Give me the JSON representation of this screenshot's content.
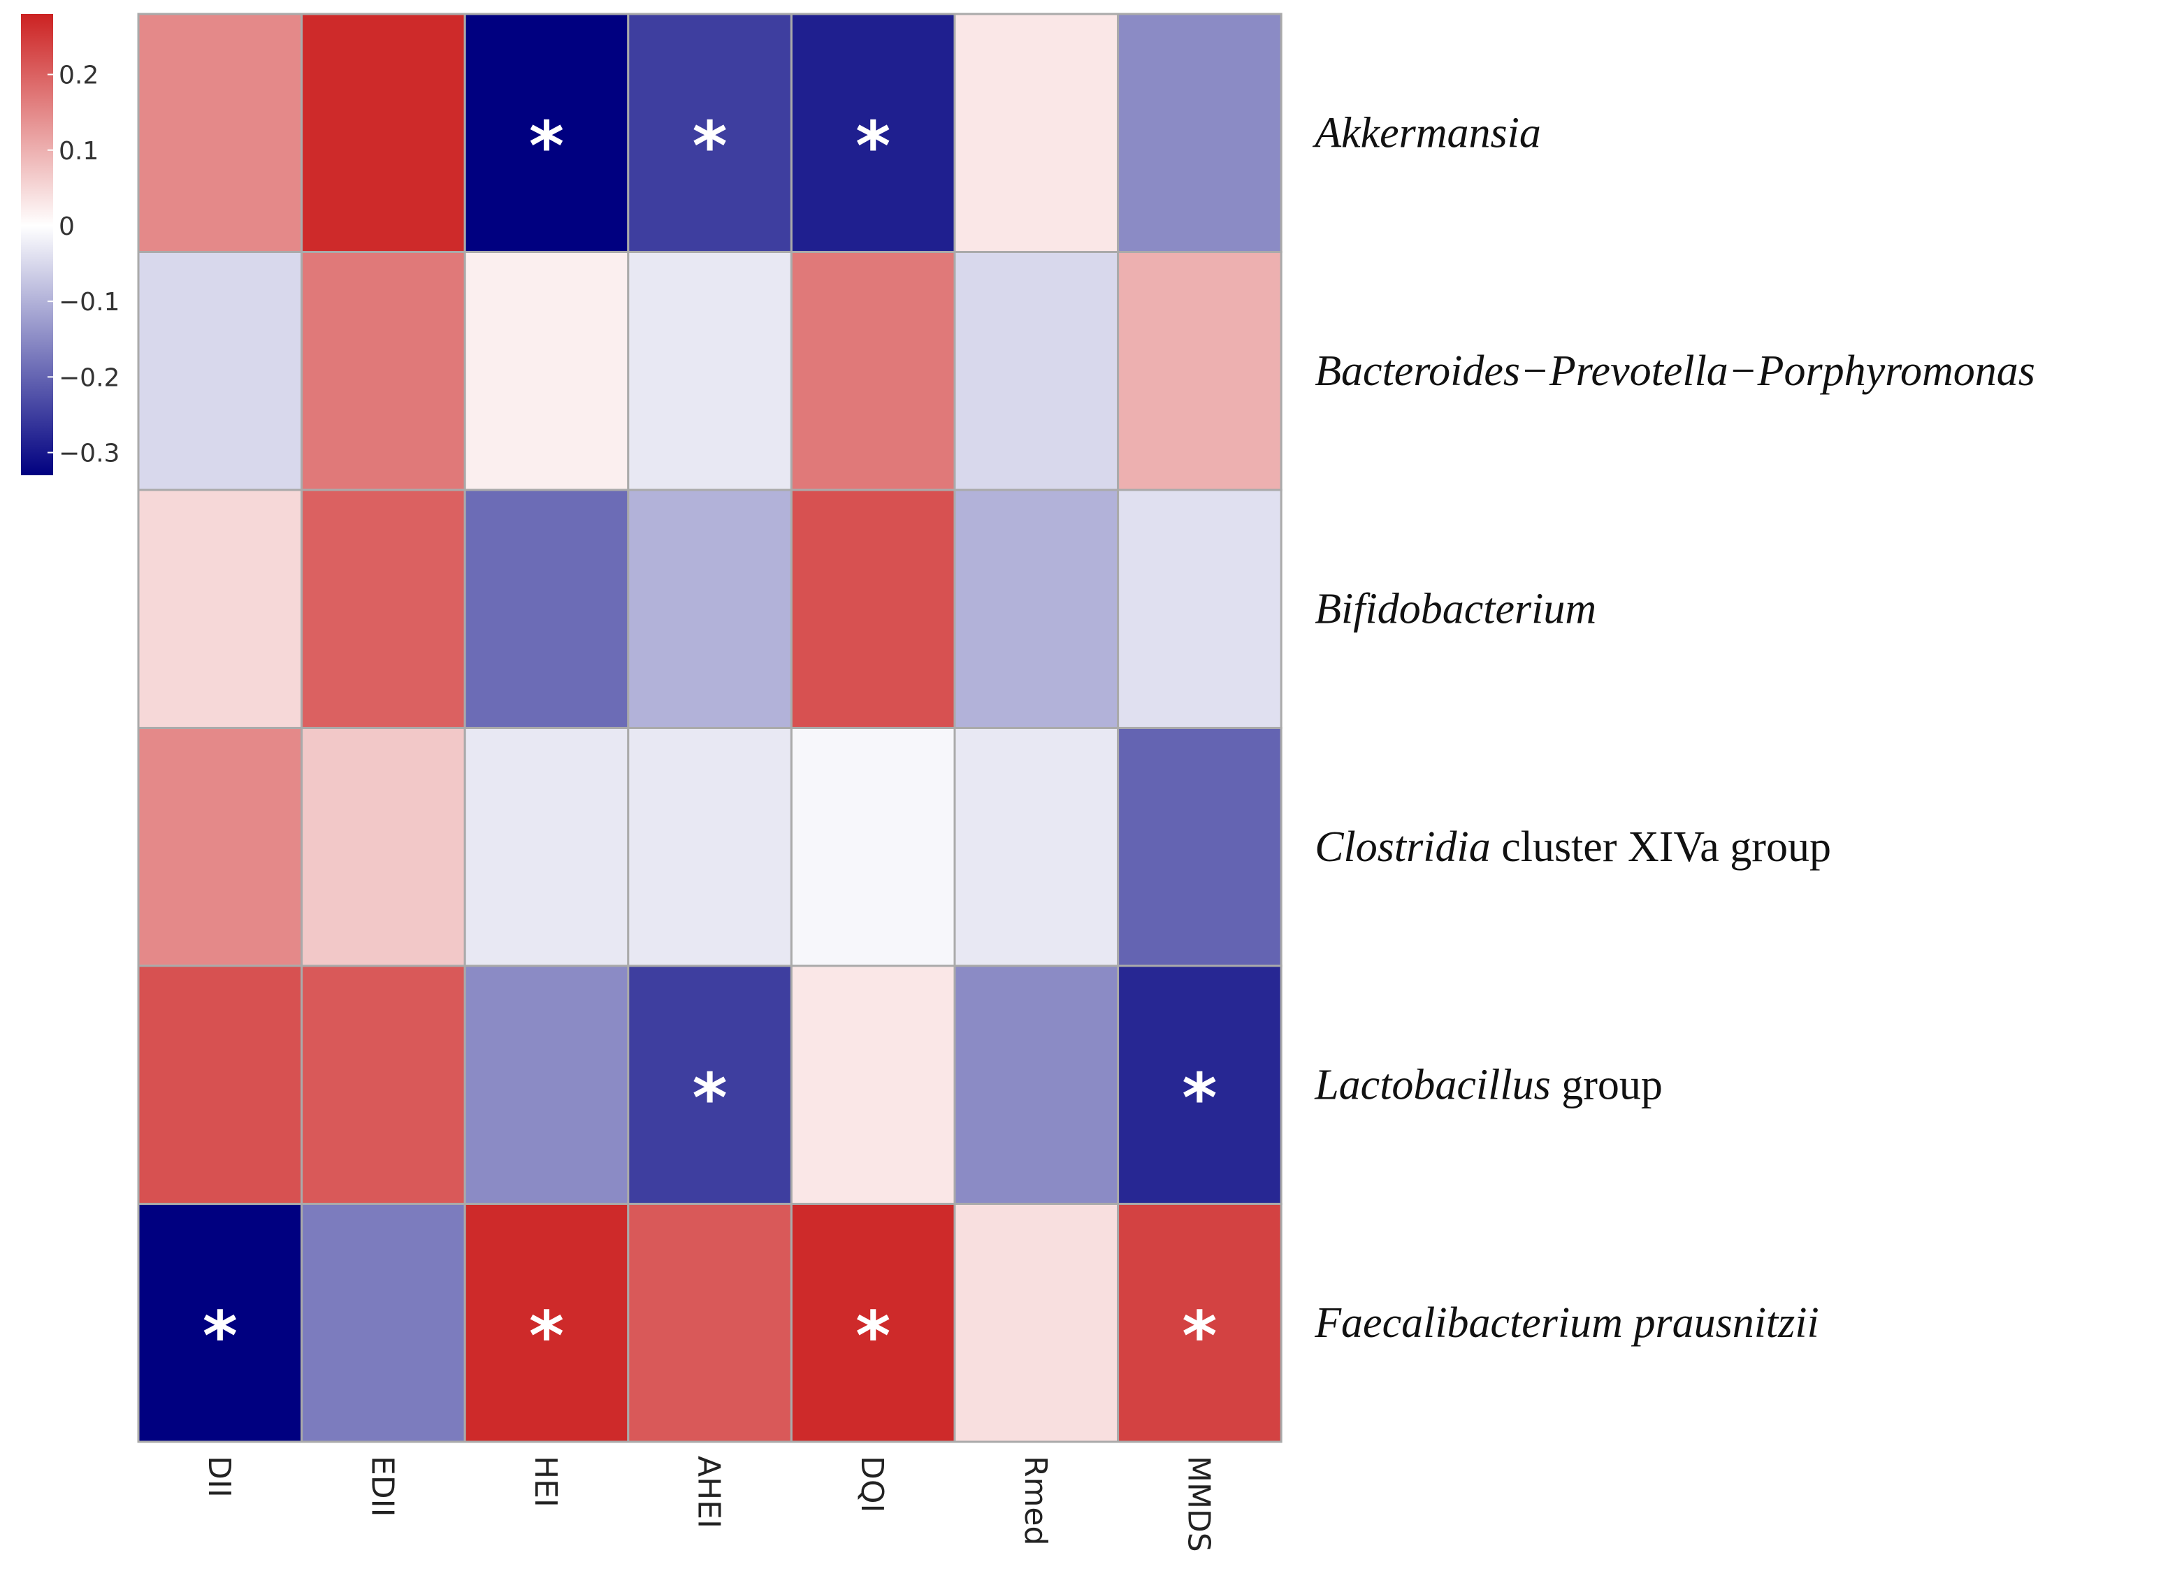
{
  "chart_data": {
    "type": "heatmap",
    "title": "",
    "columns": [
      "DII",
      "EDII",
      "HEI",
      "AHEI",
      "DQI",
      "Rmed",
      "MMDS"
    ],
    "rows": [
      {
        "segments": [
          {
            "text": "Akkermansia",
            "italic": true
          }
        ]
      },
      {
        "segments": [
          {
            "text": "Bacteroides−Prevotella−Porphyromonas",
            "italic": true
          }
        ]
      },
      {
        "segments": [
          {
            "text": "Bifidobacterium",
            "italic": true
          }
        ]
      },
      {
        "segments": [
          {
            "text": "Clostridia",
            "italic": true
          },
          {
            "text": " cluster XIVa group",
            "italic": false
          }
        ]
      },
      {
        "segments": [
          {
            "text": "Lactobacillus",
            "italic": true
          },
          {
            "text": " group",
            "italic": false
          }
        ]
      },
      {
        "segments": [
          {
            "text": "Faecalibacterium prausnitzii",
            "italic": true
          }
        ]
      }
    ],
    "values": [
      [
        0.15,
        0.27,
        -0.33,
        -0.25,
        -0.29,
        0.03,
        -0.15
      ],
      [
        -0.05,
        0.17,
        0.02,
        -0.03,
        0.17,
        -0.05,
        0.1
      ],
      [
        0.05,
        0.2,
        -0.19,
        -0.1,
        0.22,
        -0.1,
        -0.04
      ],
      [
        0.15,
        0.07,
        -0.03,
        -0.03,
        -0.01,
        -0.03,
        -0.2
      ],
      [
        0.22,
        0.21,
        -0.15,
        -0.25,
        0.03,
        -0.15,
        -0.28
      ],
      [
        -0.33,
        -0.17,
        0.27,
        0.21,
        0.27,
        0.04,
        0.24
      ]
    ],
    "significance": [
      [
        false,
        false,
        true,
        true,
        true,
        false,
        false
      ],
      [
        false,
        false,
        false,
        false,
        false,
        false,
        false
      ],
      [
        false,
        false,
        false,
        false,
        false,
        false,
        false
      ],
      [
        false,
        false,
        false,
        false,
        false,
        false,
        false
      ],
      [
        false,
        false,
        false,
        true,
        false,
        false,
        true
      ],
      [
        true,
        false,
        true,
        false,
        true,
        false,
        true
      ]
    ],
    "significance_symbol": "*",
    "colorbar": {
      "range": [
        -0.33,
        0.28
      ],
      "ticks": [
        0.2,
        0.1,
        0,
        -0.1,
        -0.2,
        -0.3
      ],
      "tick_labels": [
        "0.2",
        "0.1",
        "0",
        "−0.1",
        "−0.2",
        "−0.3"
      ]
    },
    "colors": {
      "low": "#000080",
      "mid": "#ffffff",
      "high": "#cc2222",
      "grid": "#aaaaaa",
      "star_on_dark": "#ffffff",
      "star_on_light": "#111111"
    }
  }
}
